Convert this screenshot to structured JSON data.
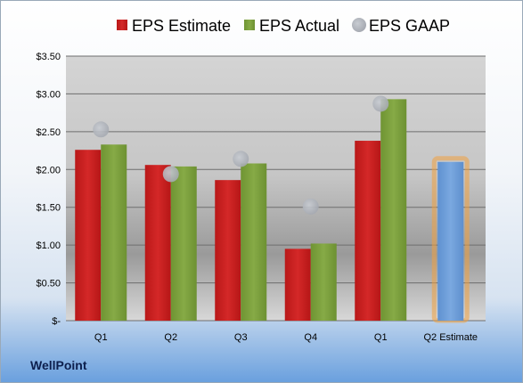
{
  "brand": "WellPoint",
  "chart_data": {
    "type": "bar",
    "categories": [
      "Q1",
      "Q2",
      "Q3",
      "Q4",
      "Q1",
      "Q2 Estimate"
    ],
    "series": [
      {
        "name": "EPS Estimate",
        "values": [
          2.26,
          2.06,
          1.86,
          0.95,
          2.38,
          null
        ],
        "color": "#cc1f1f"
      },
      {
        "name": "EPS Actual",
        "values": [
          2.33,
          2.04,
          2.08,
          1.02,
          2.93,
          null
        ],
        "color": "#7ea23e"
      },
      {
        "name": "EPS GAAP",
        "values": [
          2.53,
          1.94,
          2.14,
          1.51,
          2.87,
          null
        ],
        "color": "#b4b8c0"
      }
    ],
    "estimate": {
      "category": "Q2 Estimate",
      "value": 2.1,
      "color": "#6f9fd8",
      "glow": "#f0a040"
    },
    "y_ticks": [
      {
        "value": 0,
        "label": "$-"
      },
      {
        "value": 0.5,
        "label": "$0.50"
      },
      {
        "value": 1.0,
        "label": "$1.00"
      },
      {
        "value": 1.5,
        "label": "$1.50"
      },
      {
        "value": 2.0,
        "label": "$2.00"
      },
      {
        "value": 2.5,
        "label": "$2.50"
      },
      {
        "value": 3.0,
        "label": "$3.00"
      },
      {
        "value": 3.5,
        "label": "$3.50"
      }
    ],
    "ylim": [
      0,
      3.5
    ],
    "grid": true,
    "legend_position": "top"
  }
}
